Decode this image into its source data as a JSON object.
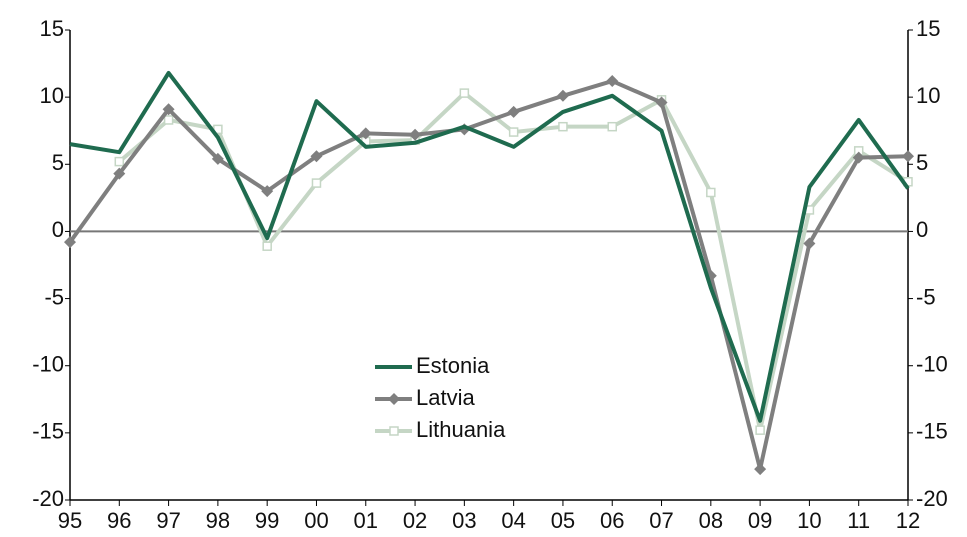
{
  "chart_data": {
    "type": "line",
    "categories": [
      "95",
      "96",
      "97",
      "98",
      "99",
      "00",
      "01",
      "02",
      "03",
      "04",
      "05",
      "06",
      "07",
      "08",
      "09",
      "10",
      "11",
      "12"
    ],
    "series": [
      {
        "name": "Estonia",
        "color": "#1f6b4f",
        "marker": "none",
        "values": [
          6.5,
          5.9,
          11.8,
          7.0,
          -0.5,
          9.7,
          6.3,
          6.6,
          7.8,
          6.3,
          8.9,
          10.1,
          7.5,
          -4.2,
          -14.1,
          3.3,
          8.3,
          3.2
        ]
      },
      {
        "name": "Latvia",
        "color": "#7f7f7f",
        "marker": "diamond",
        "values": [
          -0.8,
          4.3,
          9.1,
          5.4,
          3.0,
          5.6,
          7.3,
          7.2,
          7.6,
          8.9,
          10.1,
          11.2,
          9.6,
          -3.3,
          -17.7,
          -0.9,
          5.5,
          5.6
        ]
      },
      {
        "name": "Lithuania",
        "color": "#c5d6c5",
        "marker": "square",
        "values": [
          null,
          5.2,
          8.3,
          7.6,
          -1.1,
          3.6,
          6.7,
          6.8,
          10.3,
          7.4,
          7.8,
          7.8,
          9.8,
          2.9,
          -14.8,
          1.6,
          6.0,
          3.7
        ]
      }
    ],
    "ylim": [
      -20,
      15
    ],
    "yticks": [
      -20,
      -15,
      -10,
      -5,
      0,
      5,
      10,
      15
    ],
    "y2lim": [
      -20,
      15
    ],
    "y2ticks": [
      -20,
      -15,
      -10,
      -5,
      0,
      5,
      10,
      15
    ]
  }
}
